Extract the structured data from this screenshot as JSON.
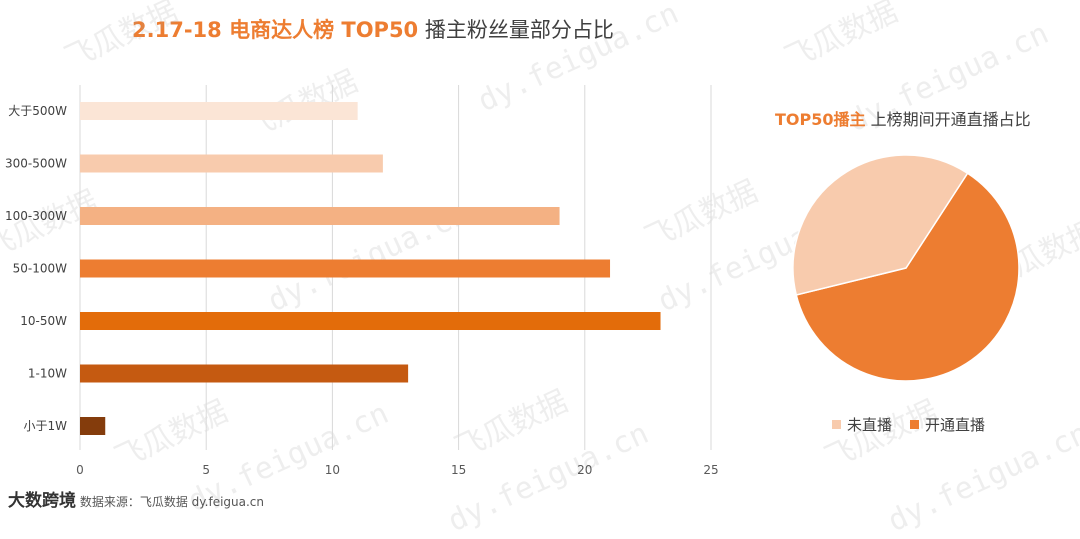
{
  "title": {
    "highlight": "2.17-18 电商达人榜 TOP50",
    "rest": "播主粉丝量部分占比"
  },
  "chart_data": [
    {
      "type": "bar",
      "orientation": "horizontal",
      "categories": [
        "大于500W",
        "300-500W",
        "100-300W",
        "50-100W",
        "10-50W",
        "1-10W",
        "小于1W"
      ],
      "values": [
        11,
        12,
        19,
        21,
        23,
        13,
        1
      ],
      "colors": [
        "#fbe5d6",
        "#f8cbad",
        "#f4b183",
        "#ed7d31",
        "#e36c0a",
        "#c55a11",
        "#843c0c"
      ],
      "xlim": [
        0,
        25
      ],
      "xticks": [
        "0",
        "5",
        "10",
        "15",
        "20",
        "25"
      ],
      "grid": true
    },
    {
      "type": "pie",
      "title_highlight": "TOP50播主",
      "title_rest": " 上榜期间开通直播占比",
      "series": [
        {
          "name": "未直播",
          "value": 38,
          "color": "#f8cbad"
        },
        {
          "name": "开通直播",
          "value": 62,
          "color": "#ed7d31"
        }
      ],
      "legend": "bottom"
    }
  ],
  "watermarks": [
    "飞瓜数据",
    "dy.feigua.cn"
  ],
  "footer": {
    "logo": "大数跨境",
    "source": "数据来源：飞瓜数据  dy.feigua.cn"
  }
}
